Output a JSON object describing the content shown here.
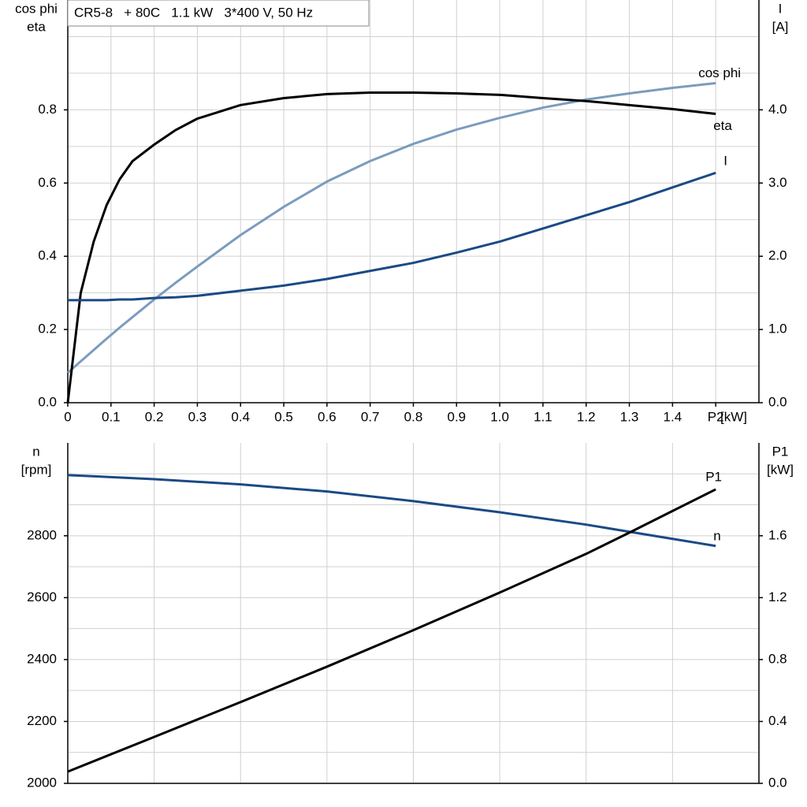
{
  "chart_data": [
    {
      "type": "line",
      "title": "CR5-8   + 80C   1.1 kW   3*400 V, 50 Hz",
      "ylabel": [
        "cos phi",
        "eta"
      ],
      "y2label": [
        "I",
        "[A]"
      ],
      "xlabel": "[kW]",
      "xlim": [
        0,
        1.6
      ],
      "xticks": [
        {
          "value": 0,
          "label": "0"
        },
        0.1,
        0.2,
        0.3,
        0.4,
        0.5,
        0.6,
        0.7,
        0.8,
        0.9,
        {
          "value": 1,
          "label": "1.0"
        },
        1.1,
        1.2,
        1.3,
        1.4,
        {
          "value": 1.5,
          "label": "P2"
        }
      ],
      "ylim": [
        0,
        1.1
      ],
      "yticks": [
        {
          "value": 0,
          "label": "0.0"
        },
        0.2,
        0.4,
        0.6,
        0.8
      ],
      "ygrid": [
        0.1,
        0.3,
        0.5,
        0.7,
        0.9,
        1.0
      ],
      "y2lim": [
        0,
        5.5
      ],
      "y2ticks": [
        {
          "value": 0,
          "label": "0.0"
        },
        {
          "value": 1,
          "label": "1.0"
        },
        {
          "value": 2,
          "label": "2.0"
        },
        {
          "value": 3,
          "label": "3.0"
        },
        {
          "value": 4,
          "label": "4.0"
        }
      ],
      "grid": true,
      "x": [
        0,
        0.03,
        0.06,
        0.09,
        0.12,
        0.15,
        0.2,
        0.25,
        0.3,
        0.4,
        0.5,
        0.6,
        0.7,
        0.8,
        0.9,
        1.0,
        1.1,
        1.2,
        1.3,
        1.4,
        1.5
      ],
      "series": [
        {
          "name": "cos phi",
          "color": "#7b9cbd",
          "values": [
            0.082,
            0.113,
            0.144,
            0.175,
            0.205,
            0.234,
            0.282,
            0.328,
            0.372,
            0.458,
            0.535,
            0.604,
            0.66,
            0.707,
            0.746,
            0.778,
            0.806,
            0.828,
            0.845,
            0.86,
            0.873
          ]
        },
        {
          "name": "eta",
          "color": "#000000",
          "values": [
            0,
            0.3,
            0.44,
            0.54,
            0.61,
            0.66,
            0.705,
            0.745,
            0.776,
            0.813,
            0.832,
            0.843,
            0.847,
            0.847,
            0.845,
            0.841,
            0.832,
            0.824,
            0.813,
            0.802,
            0.789
          ]
        },
        {
          "name": "I",
          "color": "#1a4a85",
          "axis": "y2",
          "values": [
            1.4,
            1.4,
            1.4,
            1.4,
            1.41,
            1.41,
            1.43,
            1.44,
            1.46,
            1.53,
            1.6,
            1.69,
            1.8,
            1.91,
            2.05,
            2.2,
            2.38,
            2.56,
            2.74,
            2.94,
            3.14
          ]
        }
      ]
    },
    {
      "type": "line",
      "ylabel": [
        "n",
        "[rpm]"
      ],
      "y2label": [
        "P1",
        "[kW]"
      ],
      "xlim": [
        0,
        1.6
      ],
      "xgrid": [
        0.2,
        0.4,
        0.6,
        0.8,
        1.0,
        1.2,
        1.4
      ],
      "ylim": [
        2000,
        3100
      ],
      "yticks": [
        2000,
        2200,
        2400,
        2600,
        2800
      ],
      "ygrid": [
        2100,
        2300,
        2500,
        2700,
        2900,
        3000
      ],
      "y2lim": [
        0,
        2.2
      ],
      "y2ticks": [
        {
          "value": 0,
          "label": "0.0"
        },
        0.4,
        0.8,
        1.2,
        1.6
      ],
      "grid": true,
      "x": [
        0,
        0.2,
        0.4,
        0.6,
        0.8,
        1.0,
        1.2,
        1.3,
        1.4,
        1.5
      ],
      "series": [
        {
          "name": "n",
          "color": "#1a4a85",
          "values": [
            2996,
            2983,
            2966,
            2943,
            2912,
            2876,
            2836,
            2813,
            2790,
            2767
          ]
        },
        {
          "name": "P1",
          "color": "#000000",
          "axis": "y2",
          "values": [
            0.076,
            0.3,
            0.525,
            0.754,
            0.99,
            1.233,
            1.483,
            1.62,
            1.76,
            1.9
          ]
        }
      ]
    }
  ]
}
